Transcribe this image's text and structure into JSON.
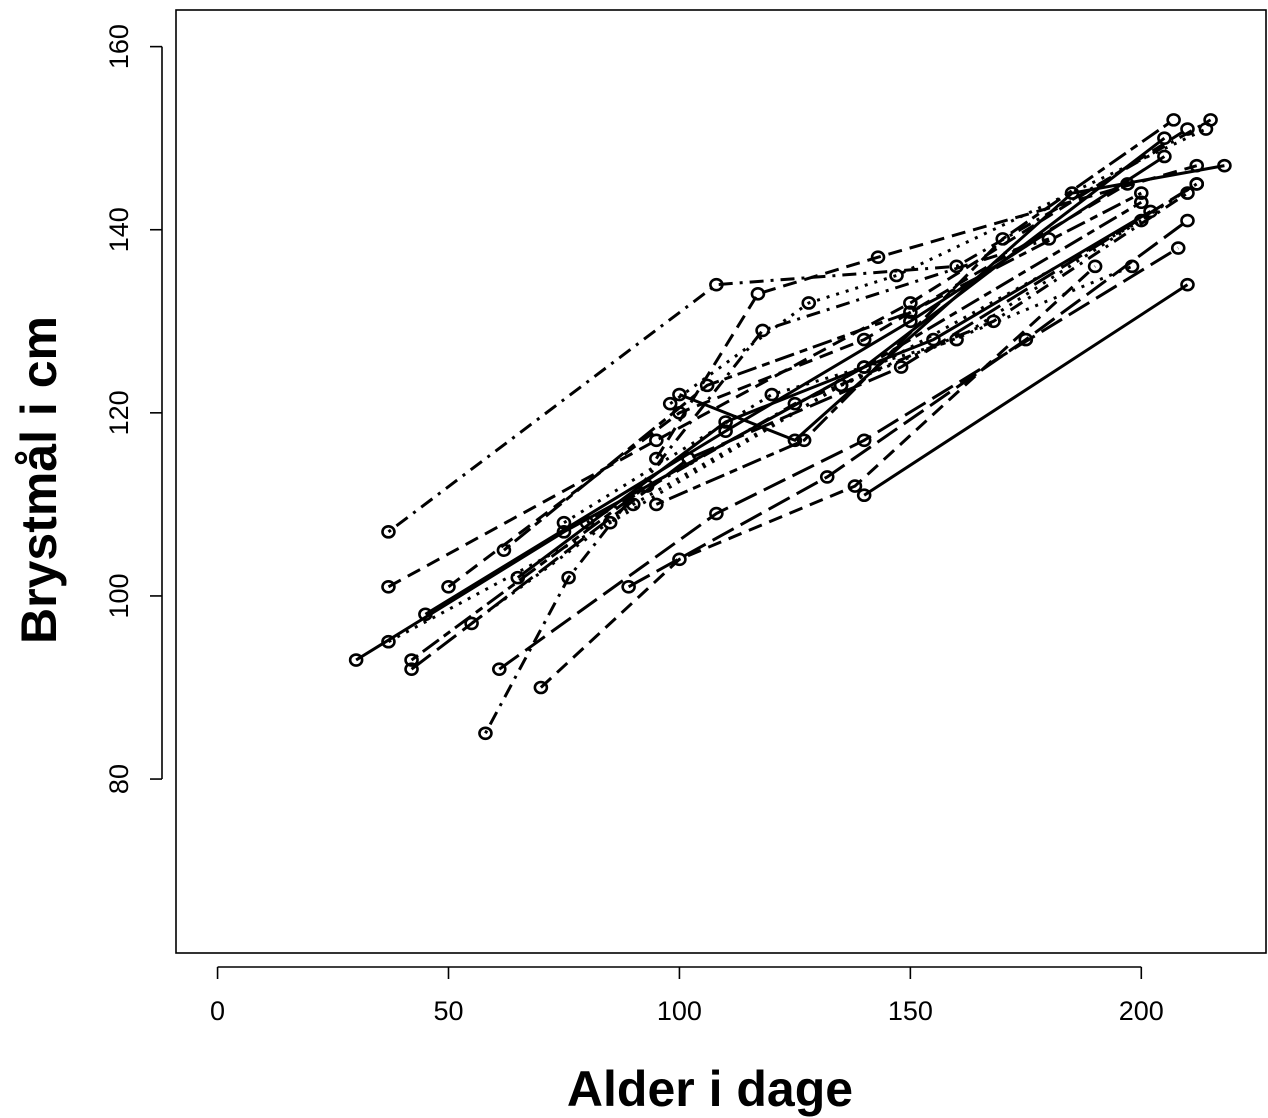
{
  "chart_data": {
    "type": "scatter",
    "xlabel": "Alder i dage",
    "ylabel": "Brystmål i cm",
    "xlim": [
      -9,
      227
    ],
    "ylim": [
      61,
      164
    ],
    "xticks": [
      "0",
      "50",
      "100",
      "150",
      "200"
    ],
    "xtick_values": [
      0,
      50,
      100,
      150,
      200
    ],
    "yticks": [
      "80",
      "100",
      "120",
      "140",
      "160"
    ],
    "ytick_values": [
      80,
      100,
      120,
      140,
      160
    ],
    "grid": false,
    "legend": "none",
    "series": [
      {
        "dash": "solid",
        "x": [
          30,
          75,
          140,
          205
        ],
        "y": [
          93,
          107,
          125,
          150
        ]
      },
      {
        "dash": "dashed",
        "x": [
          37,
          95,
          150,
          210
        ],
        "y": [
          101,
          117,
          132,
          151
        ]
      },
      {
        "dash": "dotted",
        "x": [
          37,
          85,
          135,
          200
        ],
        "y": [
          95,
          108,
          123,
          141
        ]
      },
      {
        "dash": "dotdash",
        "x": [
          37,
          108,
          160,
          215
        ],
        "y": [
          107,
          134,
          136,
          152
        ]
      },
      {
        "dash": "longdash",
        "x": [
          42,
          102,
          148,
          212
        ],
        "y": [
          92,
          115,
          125,
          145
        ]
      },
      {
        "dash": "twodash",
        "x": [
          42,
          93,
          140,
          200
        ],
        "y": [
          93,
          112,
          125,
          143
        ]
      },
      {
        "dash": "solid",
        "x": [
          45,
          110,
          150,
          205
        ],
        "y": [
          98,
          118,
          130,
          148
        ]
      },
      {
        "dash": "dashed",
        "x": [
          50,
          100,
          140,
          197
        ],
        "y": [
          101,
          120,
          128,
          145
        ]
      },
      {
        "dash": "dotted",
        "x": [
          55,
          90,
          135,
          198
        ],
        "y": [
          97,
          110,
          123,
          136
        ]
      },
      {
        "dash": "dotdash",
        "x": [
          58,
          76,
          118,
          180
        ],
        "y": [
          85,
          102,
          129,
          139
        ]
      },
      {
        "dash": "longdash",
        "x": [
          61,
          108,
          140,
          208
        ],
        "y": [
          92,
          109,
          117,
          138
        ]
      },
      {
        "dash": "twodash",
        "x": [
          62,
          106,
          150,
          200
        ],
        "y": [
          105,
          123,
          131,
          144
        ]
      },
      {
        "dash": "solid",
        "x": [
          65,
          110,
          155,
          202
        ],
        "y": [
          102,
          119,
          128,
          142
        ]
      },
      {
        "dash": "dashed",
        "x": [
          70,
          100,
          138,
          190
        ],
        "y": [
          90,
          104,
          112,
          136
        ]
      },
      {
        "dash": "dotted",
        "x": [
          75,
          120,
          160,
          212
        ],
        "y": [
          108,
          122,
          128,
          145
        ]
      },
      {
        "dash": "dotdash",
        "x": [
          80,
          125,
          168,
          210
        ],
        "y": [
          108,
          121,
          130,
          144
        ]
      },
      {
        "dash": "solid",
        "x": [
          140,
          210
        ],
        "y": [
          111,
          134
        ]
      },
      {
        "dash": "longdash",
        "x": [
          89,
          132,
          175,
          210
        ],
        "y": [
          101,
          113,
          128,
          141
        ]
      },
      {
        "dash": "twodash",
        "x": [
          95,
          127,
          170,
          207
        ],
        "y": [
          110,
          117,
          139,
          152
        ]
      },
      {
        "dash": "dashed",
        "x": [
          95,
          117,
          143,
          212
        ],
        "y": [
          115,
          133,
          137,
          147
        ]
      },
      {
        "dash": "dotted",
        "x": [
          98,
          128,
          147,
          214
        ],
        "y": [
          121,
          132,
          135,
          151
        ]
      },
      {
        "dash": "solid",
        "x": [
          100,
          125,
          185,
          218
        ],
        "y": [
          122,
          117,
          144,
          147
        ]
      }
    ]
  }
}
